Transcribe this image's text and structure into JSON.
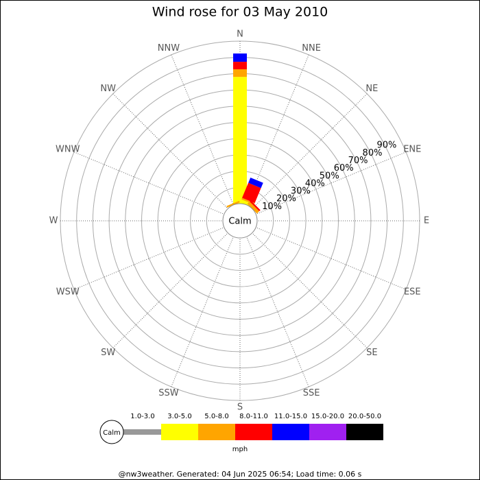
{
  "chart_data": {
    "type": "wind_rose",
    "title": "Wind rose for 03 May 2010",
    "categories": [
      "N",
      "NNE",
      "NE",
      "ENE",
      "E",
      "ESE",
      "SE",
      "SSE",
      "S",
      "SSW",
      "SW",
      "WSW",
      "W",
      "WNW",
      "NW",
      "NNW"
    ],
    "series": [
      {
        "name": "1.0-3.0",
        "color": "#999999",
        "values": [
          0,
          0,
          0,
          0,
          0,
          0,
          0,
          0,
          0,
          0,
          0,
          0,
          0,
          0,
          0,
          0
        ]
      },
      {
        "name": "3.0-5.0",
        "color": "#ffff00",
        "values": [
          78,
          2,
          0,
          0,
          0,
          0,
          0,
          0,
          0,
          0,
          0,
          0,
          0,
          0,
          0,
          0
        ]
      },
      {
        "name": "5.0-8.0",
        "color": "#ffa500",
        "values": [
          4.7,
          1,
          2,
          0,
          0,
          0,
          0,
          0,
          0,
          0,
          0,
          0,
          0,
          0,
          0,
          1
        ]
      },
      {
        "name": "8.0-11.0",
        "color": "#ff0000",
        "values": [
          4.6,
          10,
          1,
          0,
          0,
          0,
          0,
          0,
          0,
          0,
          0,
          0,
          0,
          0,
          0,
          0
        ]
      },
      {
        "name": "11.0-15.0",
        "color": "#0000ff",
        "values": [
          5.1,
          3.5,
          0,
          0,
          0,
          0,
          0,
          0,
          0,
          0,
          0,
          0,
          0,
          0,
          0,
          0
        ]
      },
      {
        "name": "15.0-20.0",
        "color": "#a020f0",
        "values": [
          0,
          0,
          0,
          0,
          0,
          0,
          0,
          0,
          0,
          0,
          0,
          0,
          0,
          0,
          0,
          0
        ]
      },
      {
        "name": "20.0-50.0",
        "color": "#000000",
        "values": [
          0,
          0,
          0,
          0,
          0,
          0,
          0,
          0,
          0,
          0,
          0,
          0,
          0,
          0,
          0,
          0
        ]
      }
    ],
    "ylim": [
      0,
      100
    ],
    "yticks": [
      {
        "value": 10,
        "label": "10%"
      },
      {
        "value": 20,
        "label": "20%"
      },
      {
        "value": 30,
        "label": "30%"
      },
      {
        "value": 40,
        "label": "40%"
      },
      {
        "value": 50,
        "label": "50%"
      },
      {
        "value": 60,
        "label": "60%"
      },
      {
        "value": 70,
        "label": "70%"
      },
      {
        "value": 80,
        "label": "80%"
      },
      {
        "value": 90,
        "label": "90%"
      }
    ],
    "calm_label": "Calm",
    "unit": "mph",
    "footer": "@nw3weather. Generated: 04 Jun 2025 06:54; Load time: 0.06 s"
  }
}
